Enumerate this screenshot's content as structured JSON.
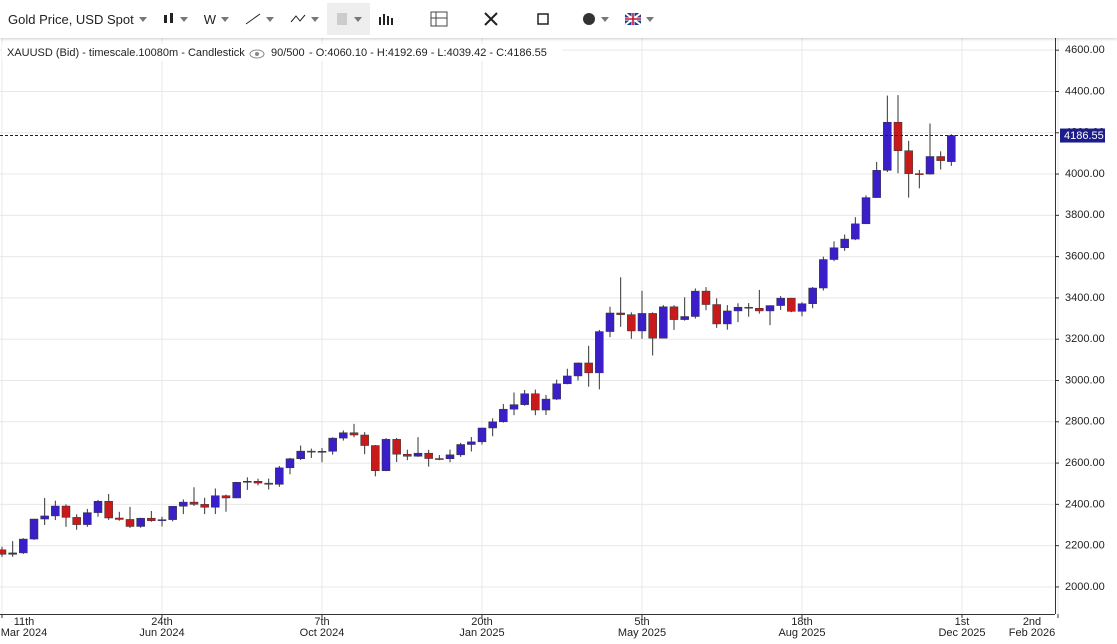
{
  "toolbar": {
    "symbol": "Gold Price, USD Spot",
    "interval": "W"
  },
  "chart_data": {
    "type": "candlestick",
    "title": "XAUUSD (Bid) - timescale.10080m - Candlestick",
    "count_text": "90/500",
    "ohlc_text": "- O:4060.10 - H:4192.69 - L:4039.42 - C:4186.55",
    "up_color": "#3a1fc8",
    "down_color": "#c81a1a",
    "grid": true,
    "categories": [
      {
        "day": "11th",
        "month": "Mar 2024"
      },
      null,
      null,
      null,
      null,
      null,
      null,
      null,
      null,
      null,
      null,
      null,
      null,
      null,
      null,
      {
        "day": "24th",
        "month": "Jun 2024"
      },
      null,
      null,
      null,
      null,
      null,
      null,
      null,
      null,
      null,
      null,
      null,
      null,
      null,
      null,
      {
        "day": "7th",
        "month": "Oct 2024"
      },
      null,
      null,
      null,
      null,
      null,
      null,
      null,
      null,
      null,
      null,
      null,
      null,
      null,
      null,
      {
        "day": "20th",
        "month": "Jan 2025"
      },
      null,
      null,
      null,
      null,
      null,
      null,
      null,
      null,
      null,
      null,
      null,
      null,
      null,
      null,
      {
        "day": "5th",
        "month": "May 2025"
      },
      null,
      null,
      null,
      null,
      null,
      null,
      null,
      null,
      null,
      null,
      null,
      null,
      null,
      null,
      {
        "day": "18th",
        "month": "Aug 2025"
      },
      null,
      null,
      null,
      null,
      null,
      null,
      null,
      null,
      null,
      null,
      null,
      null,
      null,
      null,
      {
        "day": "1st",
        "month": "Dec 2025"
      },
      null,
      null,
      null,
      null,
      null,
      null,
      null,
      null,
      {
        "day": "2nd",
        "month": "Feb 2026"
      }
    ],
    "open": [
      2180,
      2158,
      2165,
      2232,
      2329,
      2344,
      2392,
      2337,
      2302,
      2360,
      2415,
      2334,
      2327,
      2293,
      2333,
      2321,
      2326,
      2391,
      2411,
      2400,
      2386,
      2442,
      2431,
      2507,
      2512,
      2503,
      2497,
      2577,
      2621,
      2658,
      2653,
      2657,
      2721,
      2747,
      2736,
      2685,
      2563,
      2715,
      2643,
      2633,
      2648,
      2622,
      2621,
      2640,
      2690,
      2703,
      2770,
      2800,
      2861,
      2883,
      2936,
      2857,
      2910,
      2984,
      3022,
      3085,
      3037,
      3237,
      3327,
      3319,
      3240,
      3325,
      3205,
      3357,
      3295,
      3310,
      3433,
      3368,
      3274,
      3337,
      3355,
      3350,
      3337,
      3363,
      3399,
      3335,
      3372,
      3448,
      3586,
      3643,
      3685,
      3759,
      3886,
      4018,
      4251,
      4113,
      4002,
      4000,
      4085,
      4060.1,
      null,
      null,
      null,
      null,
      null,
      null,
      null,
      null,
      null,
      null
    ],
    "high": [
      2195,
      2222,
      2236,
      2330,
      2431,
      2418,
      2400,
      2352,
      2378,
      2422,
      2450,
      2364,
      2388,
      2335,
      2368,
      2340,
      2392,
      2424,
      2483,
      2432,
      2477,
      2447,
      2509,
      2531,
      2525,
      2525,
      2586,
      2625,
      2685,
      2670,
      2673,
      2725,
      2758,
      2790,
      2750,
      2688,
      2721,
      2722,
      2665,
      2726,
      2664,
      2639,
      2665,
      2698,
      2726,
      2772,
      2817,
      2886,
      2942,
      2954,
      2956,
      2930,
      3004,
      3057,
      3087,
      3168,
      3245,
      3357,
      3500,
      3330,
      3435,
      3330,
      3365,
      3365,
      3403,
      3446,
      3452,
      3398,
      3365,
      3374,
      3375,
      3439,
      3364,
      3409,
      3400,
      3379,
      3453,
      3600,
      3674,
      3707,
      3791,
      3897,
      4059,
      4380,
      4382,
      4161,
      4020,
      4245,
      4110,
      4192.69,
      null,
      null,
      null,
      null,
      null,
      null,
      null,
      null,
      null,
      null
    ],
    "low": [
      2146,
      2146,
      2160,
      2228,
      2300,
      2324,
      2291,
      2277,
      2291,
      2340,
      2325,
      2321,
      2286,
      2287,
      2316,
      2293,
      2318,
      2353,
      2392,
      2353,
      2353,
      2364,
      2430,
      2470,
      2492,
      2472,
      2485,
      2546,
      2615,
      2625,
      2604,
      2641,
      2709,
      2725,
      2643,
      2536,
      2561,
      2605,
      2614,
      2630,
      2583,
      2614,
      2604,
      2630,
      2656,
      2690,
      2730,
      2796,
      2832,
      2878,
      2832,
      2833,
      2906,
      2982,
      3000,
      2970,
      2957,
      3210,
      3260,
      3202,
      3202,
      3121,
      3204,
      3245,
      3290,
      3300,
      3340,
      3255,
      3246,
      3283,
      3309,
      3324,
      3268,
      3341,
      3331,
      3311,
      3350,
      3436,
      3578,
      3628,
      3680,
      3758,
      3885,
      4010,
      4004,
      3886,
      3931,
      3997,
      4022,
      4039.42,
      null,
      null,
      null,
      null,
      null,
      null,
      null,
      null,
      null,
      null
    ],
    "close": [
      2158,
      2165,
      2232,
      2329,
      2344,
      2392,
      2337,
      2302,
      2360,
      2415,
      2334,
      2327,
      2293,
      2333,
      2321,
      2326,
      2391,
      2411,
      2400,
      2386,
      2442,
      2431,
      2507,
      2512,
      2503,
      2497,
      2577,
      2621,
      2658,
      2653,
      2657,
      2721,
      2747,
      2736,
      2685,
      2563,
      2715,
      2643,
      2633,
      2648,
      2622,
      2621,
      2640,
      2690,
      2703,
      2770,
      2800,
      2861,
      2883,
      2936,
      2857,
      2910,
      2984,
      3022,
      3085,
      3037,
      3237,
      3327,
      3319,
      3240,
      3325,
      3205,
      3357,
      3295,
      3310,
      3433,
      3368,
      3274,
      3337,
      3355,
      3350,
      3337,
      3363,
      3399,
      3335,
      3372,
      3448,
      3586,
      3643,
      3685,
      3759,
      3886,
      4018,
      4251,
      4113,
      4002,
      4000,
      4085,
      4065,
      4186.55,
      null,
      null,
      null,
      null,
      null,
      null,
      null,
      null,
      null,
      null
    ],
    "ylim": [
      1869,
      4659
    ],
    "yticks": [
      {
        "value": 2000,
        "label": "2000.00"
      },
      {
        "value": 2200,
        "label": "2200.00"
      },
      {
        "value": 2400,
        "label": "2400.00"
      },
      {
        "value": 2600,
        "label": "2600.00"
      },
      {
        "value": 2800,
        "label": "2800.00"
      },
      {
        "value": 3000,
        "label": "3000.00"
      },
      {
        "value": 3200,
        "label": "3200.00"
      },
      {
        "value": 3400,
        "label": "3400.00"
      },
      {
        "value": 3600,
        "label": "3600.00"
      },
      {
        "value": 3800,
        "label": "3800.00"
      },
      {
        "value": 4000,
        "label": "4000.00"
      },
      {
        "value": 4200,
        "label": "4200.00"
      },
      {
        "value": 4400,
        "label": "4400.00"
      },
      {
        "value": 4600,
        "label": "4600.00"
      }
    ]
  }
}
